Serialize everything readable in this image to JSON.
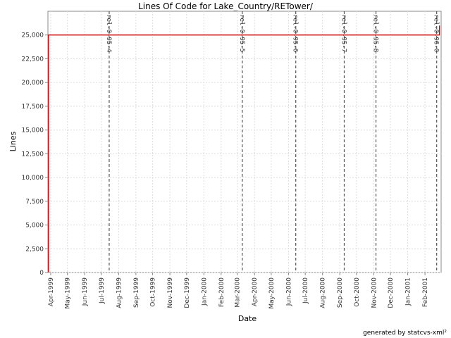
{
  "chart_data": {
    "type": "line",
    "title": "Lines Of Code for Lake_Country/RETower/",
    "xlabel": "Date",
    "ylabel": "Lines",
    "footer": "generated by statcvs-xml²",
    "grid": true,
    "colors": {
      "series": "#cc0000",
      "markers": "#555555",
      "grid": "#dddddd"
    },
    "x_tick_labels": [
      "Apr-1999",
      "May-1999",
      "Jun-1999",
      "Jul-1999",
      "Aug-1999",
      "Sep-1999",
      "Oct-1999",
      "Nov-1999",
      "Dec-1999",
      "Jan-2000",
      "Feb-2000",
      "Mar-2000",
      "Apr-2000",
      "May-2000",
      "Jun-2000",
      "Jul-2000",
      "Aug-2000",
      "Sep-2000",
      "Oct-2000",
      "Nov-2000",
      "Dec-2000",
      "Jan-2001",
      "Feb-2001"
    ],
    "x_range": [
      "1999-03-27",
      "2001-03-02"
    ],
    "y_ticks": [
      0,
      2500,
      5000,
      7500,
      10000,
      12500,
      15000,
      17500,
      20000,
      22500,
      25000
    ],
    "y_tick_labels": [
      "0",
      "2,500",
      "5,000",
      "7,500",
      "10,000",
      "12,500",
      "15,000",
      "17,500",
      "20,000",
      "22,500",
      "25,000"
    ],
    "ylim": [
      0,
      27500
    ],
    "series": [
      {
        "x": [
          "1999-03-28",
          "1999-03-28",
          "2001-02-27",
          "2001-02-27"
        ],
        "y": [
          0,
          25000,
          25000,
          26000
        ]
      }
    ],
    "markers": [
      {
        "label": "rel-0-95-4",
        "date": "1999-07-15"
      },
      {
        "label": "rel-0-95-5",
        "date": "2000-03-10"
      },
      {
        "label": "rel-0-95-6",
        "date": "2000-06-14"
      },
      {
        "label": "rel-0-95-7",
        "date": "2000-09-09"
      },
      {
        "label": "rel-0-95-8",
        "date": "2000-11-05"
      },
      {
        "label": "rel-0-96-0",
        "date": "2001-02-22"
      }
    ]
  }
}
